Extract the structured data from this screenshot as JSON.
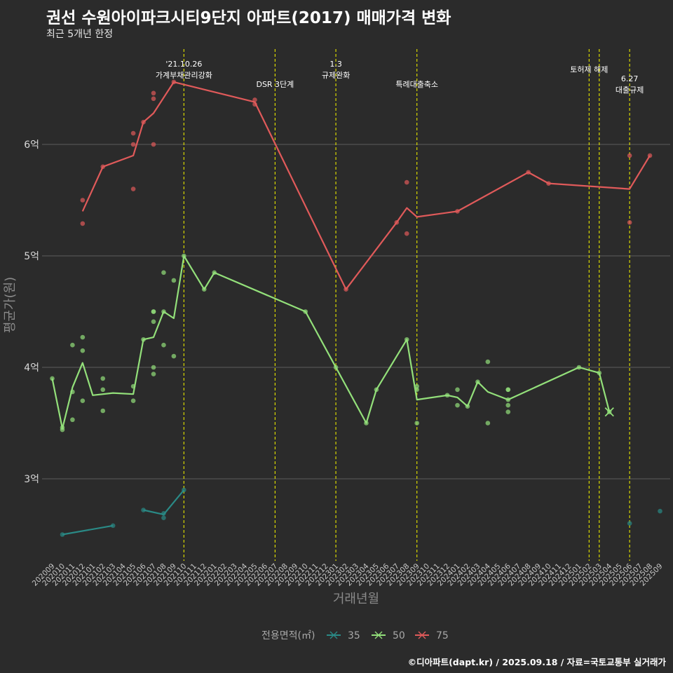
{
  "title": "권선 수원아이파크시티9단지 아파트(2017) 매매가격 변화",
  "subtitle": "최근 5개년 한정",
  "caption": "©디아파트(dapt.kr) / 2025.09.18 / 자료=국토교통부 실거래가",
  "chart_data": {
    "type": "line",
    "xlabel": "거래년월",
    "ylabel": "평균가(원)",
    "categories": [
      "202009",
      "202010",
      "202011",
      "202012",
      "202101",
      "202102",
      "202103",
      "202104",
      "202105",
      "202106",
      "202107",
      "202108",
      "202109",
      "202110",
      "202111",
      "202112",
      "202201",
      "202202",
      "202203",
      "202204",
      "202205",
      "202206",
      "202207",
      "202208",
      "202209",
      "202210",
      "202211",
      "202212",
      "202301",
      "202302",
      "202303",
      "202304",
      "202305",
      "202306",
      "202307",
      "202308",
      "202309",
      "202310",
      "202311",
      "202312",
      "202401",
      "202402",
      "202403",
      "202404",
      "202405",
      "202406",
      "202407",
      "202408",
      "202409",
      "202410",
      "202411",
      "202412",
      "202501",
      "202502",
      "202503",
      "202504",
      "202505",
      "202506",
      "202507",
      "202508",
      "202509"
    ],
    "y_ticks": [
      {
        "value": 3.0,
        "label": "3억"
      },
      {
        "value": 4.0,
        "label": "4억"
      },
      {
        "value": 5.0,
        "label": "5억"
      },
      {
        "value": 6.0,
        "label": "6억"
      }
    ],
    "ylim": [
      2.3,
      6.9
    ],
    "grid": true,
    "legend": {
      "title": "전용면적(㎡)",
      "position": "bottom"
    },
    "series": [
      {
        "name": "35",
        "color": "#2a8a86",
        "line": [
          [
            "202010",
            2.5
          ],
          [
            "202103",
            2.58
          ]
        ],
        "line2": [
          [
            "202106",
            2.72
          ],
          [
            "202108",
            2.68
          ],
          [
            "202110",
            2.9
          ]
        ],
        "points": [
          [
            "202010",
            2.5
          ],
          [
            "202103",
            2.58
          ],
          [
            "202106",
            2.72
          ],
          [
            "202108",
            2.69
          ],
          [
            "202108",
            2.65
          ],
          [
            "202110",
            2.9
          ],
          [
            "202506",
            2.6
          ],
          [
            "202509",
            2.71
          ]
        ]
      },
      {
        "name": "50",
        "color": "#93e07a",
        "line": [
          [
            "202009",
            3.9
          ],
          [
            "202010",
            3.45
          ],
          [
            "202011",
            3.82
          ],
          [
            "202012",
            4.04
          ],
          [
            "202101",
            3.75
          ],
          [
            "202103",
            3.77
          ],
          [
            "202105",
            3.76
          ],
          [
            "202106",
            4.25
          ],
          [
            "202107",
            4.27
          ],
          [
            "202108",
            4.5
          ],
          [
            "202109",
            4.44
          ],
          [
            "202110",
            5.0
          ],
          [
            "202112",
            4.7
          ],
          [
            "202201",
            4.85
          ],
          [
            "202210",
            4.5
          ],
          [
            "202301",
            4.0
          ],
          [
            "202304",
            3.5
          ],
          [
            "202305",
            3.8
          ],
          [
            "202308",
            4.25
          ],
          [
            "202309",
            3.71
          ],
          [
            "202312",
            3.75
          ],
          [
            "202401",
            3.73
          ],
          [
            "202402",
            3.65
          ],
          [
            "202403",
            3.87
          ],
          [
            "202404",
            3.78
          ],
          [
            "202406",
            3.71
          ],
          [
            "202501",
            4.0
          ],
          [
            "202503",
            3.95
          ],
          [
            "202504",
            3.6
          ]
        ],
        "points": [
          [
            "202009",
            3.9
          ],
          [
            "202010",
            3.44
          ],
          [
            "202010",
            3.46
          ],
          [
            "202011",
            4.2
          ],
          [
            "202011",
            3.78
          ],
          [
            "202011",
            3.53
          ],
          [
            "202012",
            4.27
          ],
          [
            "202012",
            4.15
          ],
          [
            "202012",
            3.7
          ],
          [
            "202102",
            3.9
          ],
          [
            "202102",
            3.8
          ],
          [
            "202102",
            3.61
          ],
          [
            "202105",
            3.83
          ],
          [
            "202105",
            3.7
          ],
          [
            "202106",
            4.25
          ],
          [
            "202107",
            4.5
          ],
          [
            "202107",
            4.5
          ],
          [
            "202107",
            4.41
          ],
          [
            "202107",
            4.0
          ],
          [
            "202107",
            3.94
          ],
          [
            "202108",
            4.85
          ],
          [
            "202108",
            4.5
          ],
          [
            "202108",
            4.2
          ],
          [
            "202109",
            4.78
          ],
          [
            "202109",
            4.1
          ],
          [
            "202110",
            5.0
          ],
          [
            "202112",
            4.7
          ],
          [
            "202201",
            4.85
          ],
          [
            "202210",
            4.5
          ],
          [
            "202301",
            4.0
          ],
          [
            "202304",
            3.5
          ],
          [
            "202305",
            3.8
          ],
          [
            "202308",
            4.25
          ],
          [
            "202309",
            3.83
          ],
          [
            "202309",
            3.8
          ],
          [
            "202309",
            3.5
          ],
          [
            "202312",
            3.75
          ],
          [
            "202401",
            3.8
          ],
          [
            "202401",
            3.66
          ],
          [
            "202402",
            3.65
          ],
          [
            "202403",
            3.87
          ],
          [
            "202404",
            4.05
          ],
          [
            "202404",
            3.5
          ],
          [
            "202406",
            3.8
          ],
          [
            "202406",
            3.8
          ],
          [
            "202406",
            3.71
          ],
          [
            "202406",
            3.66
          ],
          [
            "202406",
            3.6
          ],
          [
            "202501",
            4.0
          ],
          [
            "202503",
            3.95
          ],
          [
            "202504",
            3.6
          ]
        ]
      },
      {
        "name": "75",
        "color": "#e05a5a",
        "line": [
          [
            "202012",
            5.4
          ],
          [
            "202102",
            5.8
          ],
          [
            "202105",
            5.9
          ],
          [
            "202106",
            6.2
          ],
          [
            "202107",
            6.28
          ],
          [
            "202109",
            6.56
          ],
          [
            "202205",
            6.38
          ],
          [
            "202302",
            4.7
          ],
          [
            "202307",
            5.3
          ],
          [
            "202308",
            5.43
          ],
          [
            "202309",
            5.35
          ],
          [
            "202401",
            5.4
          ],
          [
            "202408",
            5.75
          ],
          [
            "202410",
            5.65
          ],
          [
            "202506",
            5.6
          ],
          [
            "202508",
            5.9
          ]
        ],
        "points": [
          [
            "202012",
            5.5
          ],
          [
            "202012",
            5.29
          ],
          [
            "202102",
            5.8
          ],
          [
            "202105",
            6.1
          ],
          [
            "202105",
            6.0
          ],
          [
            "202105",
            5.6
          ],
          [
            "202106",
            6.2
          ],
          [
            "202107",
            6.46
          ],
          [
            "202107",
            6.41
          ],
          [
            "202107",
            6.0
          ],
          [
            "202109",
            6.56
          ],
          [
            "202205",
            6.4
          ],
          [
            "202205",
            6.36
          ],
          [
            "202302",
            4.7
          ],
          [
            "202307",
            5.3
          ],
          [
            "202308",
            5.66
          ],
          [
            "202308",
            5.2
          ],
          [
            "202401",
            5.4
          ],
          [
            "202408",
            5.75
          ],
          [
            "202410",
            5.65
          ],
          [
            "202506",
            5.9
          ],
          [
            "202506",
            5.3
          ],
          [
            "202508",
            5.9
          ]
        ]
      }
    ],
    "events": [
      {
        "x": "202110",
        "lines": [
          "'21.10.26",
          "가계부채관리강화"
        ]
      },
      {
        "x": "202207",
        "lines": [
          "DSR 3단계"
        ]
      },
      {
        "x": "202301",
        "lines": [
          "1.3",
          "규제완화"
        ]
      },
      {
        "x": "202309",
        "lines": [
          "특례대출축소"
        ]
      },
      {
        "x": "202502",
        "lines": [
          "토허제 해제"
        ]
      },
      {
        "x": "202503",
        "lines": []
      },
      {
        "x": "202506",
        "lines": [
          "6.27",
          "대출규제"
        ]
      }
    ]
  }
}
